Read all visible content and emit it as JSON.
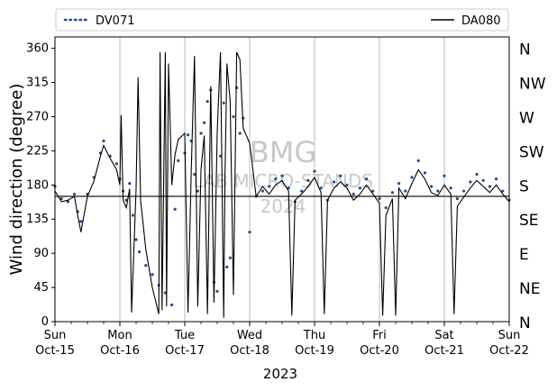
{
  "chart_data": {
    "type": "line",
    "xlabel": "2023",
    "ylabel": "Wind direction (degree)",
    "ylim": [
      0,
      375
    ],
    "xlim": [
      "2023-10-15",
      "2023-10-22"
    ],
    "grid": "vertical lines at day ticks",
    "legend_position": "top (outside, above plot)",
    "y_ticks": [
      0,
      45,
      90,
      135,
      180,
      225,
      270,
      315,
      360
    ],
    "x_ticks": [
      {
        "date": "2023-10-15",
        "day": "Sun",
        "label": "Oct-15"
      },
      {
        "date": "2023-10-16",
        "day": "Mon",
        "label": "Oct-16"
      },
      {
        "date": "2023-10-17",
        "day": "Tue",
        "label": "Oct-17"
      },
      {
        "date": "2023-10-18",
        "day": "Wed",
        "label": "Oct-18"
      },
      {
        "date": "2023-10-19",
        "day": "Thu",
        "label": "Oct-19"
      },
      {
        "date": "2023-10-20",
        "day": "Fri",
        "label": "Oct-20"
      },
      {
        "date": "2023-10-21",
        "day": "Sat",
        "label": "Oct-21"
      },
      {
        "date": "2023-10-22",
        "day": "Sun",
        "label": "Oct-22"
      }
    ],
    "compass_labels": [
      {
        "deg": 0,
        "label": "N"
      },
      {
        "deg": 45,
        "label": "NE"
      },
      {
        "deg": 90,
        "label": "E"
      },
      {
        "deg": 135,
        "label": "SE"
      },
      {
        "deg": 180,
        "label": "S"
      },
      {
        "deg": 225,
        "label": "SW"
      },
      {
        "deg": 270,
        "label": "W"
      },
      {
        "deg": 315,
        "label": "NW"
      },
      {
        "deg": 360,
        "label": "N"
      }
    ],
    "reference_line": {
      "y": 165
    },
    "watermark": [
      "BMG",
      "LAB MICRO-STANDS",
      "2024"
    ],
    "series": [
      {
        "name": "DV071",
        "style": "dotted",
        "color": "#1f4e8c",
        "points": [
          [
            0.0,
            178
          ],
          [
            0.1,
            162
          ],
          [
            0.2,
            158
          ],
          [
            0.3,
            168
          ],
          [
            0.35,
            145
          ],
          [
            0.4,
            132
          ],
          [
            0.5,
            168
          ],
          [
            0.6,
            190
          ],
          [
            0.7,
            222
          ],
          [
            0.75,
            238
          ],
          [
            0.85,
            218
          ],
          [
            0.95,
            208
          ],
          [
            1.0,
            188
          ],
          [
            1.05,
            172
          ],
          [
            1.1,
            160
          ],
          [
            1.15,
            182
          ],
          [
            1.2,
            140
          ],
          [
            1.25,
            108
          ],
          [
            1.3,
            92
          ],
          [
            1.4,
            74
          ],
          [
            1.5,
            62
          ],
          [
            1.6,
            48
          ],
          [
            1.7,
            38
          ],
          [
            1.8,
            22
          ],
          [
            1.85,
            148
          ],
          [
            1.9,
            212
          ],
          [
            2.0,
            222
          ],
          [
            2.05,
            246
          ],
          [
            2.1,
            238
          ],
          [
            2.15,
            194
          ],
          [
            2.2,
            172
          ],
          [
            2.25,
            248
          ],
          [
            2.3,
            262
          ],
          [
            2.35,
            290
          ],
          [
            2.4,
            305
          ],
          [
            2.45,
            52
          ],
          [
            2.5,
            40
          ],
          [
            2.55,
            218
          ],
          [
            2.6,
            288
          ],
          [
            2.65,
            72
          ],
          [
            2.7,
            84
          ],
          [
            2.75,
            270
          ],
          [
            2.8,
            308
          ],
          [
            2.85,
            248
          ],
          [
            2.9,
            268
          ],
          [
            3.0,
            118
          ],
          [
            3.1,
            165
          ],
          [
            3.2,
            172
          ],
          [
            3.3,
            178
          ],
          [
            3.4,
            188
          ],
          [
            3.5,
            192
          ],
          [
            3.6,
            176
          ],
          [
            3.7,
            158
          ],
          [
            3.8,
            172
          ],
          [
            3.9,
            186
          ],
          [
            4.0,
            198
          ],
          [
            4.1,
            176
          ],
          [
            4.2,
            160
          ],
          [
            4.3,
            184
          ],
          [
            4.4,
            192
          ],
          [
            4.5,
            180
          ],
          [
            4.6,
            168
          ],
          [
            4.7,
            176
          ],
          [
            4.8,
            188
          ],
          [
            4.9,
            172
          ],
          [
            5.0,
            162
          ],
          [
            5.1,
            150
          ],
          [
            5.2,
            170
          ],
          [
            5.3,
            182
          ],
          [
            5.4,
            172
          ],
          [
            5.5,
            190
          ],
          [
            5.6,
            212
          ],
          [
            5.7,
            196
          ],
          [
            5.8,
            178
          ],
          [
            5.9,
            172
          ],
          [
            6.0,
            192
          ],
          [
            6.1,
            176
          ],
          [
            6.2,
            162
          ],
          [
            6.3,
            172
          ],
          [
            6.4,
            184
          ],
          [
            6.5,
            194
          ],
          [
            6.6,
            186
          ],
          [
            6.7,
            178
          ],
          [
            6.8,
            188
          ],
          [
            6.9,
            172
          ],
          [
            7.0,
            160
          ]
        ]
      },
      {
        "name": "DA080",
        "style": "solid",
        "color": "#000000",
        "points": [
          [
            0.0,
            172
          ],
          [
            0.1,
            158
          ],
          [
            0.2,
            160
          ],
          [
            0.3,
            165
          ],
          [
            0.35,
            140
          ],
          [
            0.4,
            118
          ],
          [
            0.5,
            165
          ],
          [
            0.6,
            185
          ],
          [
            0.7,
            218
          ],
          [
            0.75,
            232
          ],
          [
            0.85,
            215
          ],
          [
            0.95,
            200
          ],
          [
            1.0,
            180
          ],
          [
            1.02,
            272
          ],
          [
            1.05,
            160
          ],
          [
            1.1,
            150
          ],
          [
            1.15,
            175
          ],
          [
            1.18,
            12
          ],
          [
            1.25,
            175
          ],
          [
            1.28,
            322
          ],
          [
            1.32,
            160
          ],
          [
            1.4,
            95
          ],
          [
            1.5,
            45
          ],
          [
            1.6,
            10
          ],
          [
            1.62,
            355
          ],
          [
            1.65,
            15
          ],
          [
            1.7,
            355
          ],
          [
            1.72,
            20
          ],
          [
            1.75,
            340
          ],
          [
            1.8,
            180
          ],
          [
            1.85,
            220
          ],
          [
            1.9,
            240
          ],
          [
            2.0,
            248
          ],
          [
            2.05,
            12
          ],
          [
            2.1,
            200
          ],
          [
            2.15,
            350
          ],
          [
            2.2,
            20
          ],
          [
            2.25,
            200
          ],
          [
            2.3,
            245
          ],
          [
            2.35,
            10
          ],
          [
            2.4,
            310
          ],
          [
            2.45,
            25
          ],
          [
            2.5,
            250
          ],
          [
            2.55,
            355
          ],
          [
            2.6,
            5
          ],
          [
            2.62,
            190
          ],
          [
            2.65,
            340
          ],
          [
            2.7,
            290
          ],
          [
            2.75,
            35
          ],
          [
            2.8,
            355
          ],
          [
            2.85,
            345
          ],
          [
            2.9,
            255
          ],
          [
            3.0,
            235
          ],
          [
            3.1,
            165
          ],
          [
            3.2,
            178
          ],
          [
            3.3,
            168
          ],
          [
            3.4,
            180
          ],
          [
            3.5,
            186
          ],
          [
            3.6,
            172
          ],
          [
            3.65,
            8
          ],
          [
            3.7,
            160
          ],
          [
            3.8,
            168
          ],
          [
            3.9,
            178
          ],
          [
            4.0,
            190
          ],
          [
            4.1,
            170
          ],
          [
            4.15,
            10
          ],
          [
            4.2,
            160
          ],
          [
            4.3,
            176
          ],
          [
            4.4,
            184
          ],
          [
            4.5,
            176
          ],
          [
            4.6,
            160
          ],
          [
            4.7,
            168
          ],
          [
            4.8,
            180
          ],
          [
            4.9,
            168
          ],
          [
            5.0,
            156
          ],
          [
            5.05,
            8
          ],
          [
            5.1,
            140
          ],
          [
            5.2,
            162
          ],
          [
            5.25,
            8
          ],
          [
            5.3,
            176
          ],
          [
            5.4,
            162
          ],
          [
            5.5,
            182
          ],
          [
            5.6,
            200
          ],
          [
            5.7,
            188
          ],
          [
            5.8,
            170
          ],
          [
            5.9,
            166
          ],
          [
            6.0,
            180
          ],
          [
            6.1,
            168
          ],
          [
            6.15,
            10
          ],
          [
            6.2,
            152
          ],
          [
            6.3,
            164
          ],
          [
            6.4,
            176
          ],
          [
            6.5,
            186
          ],
          [
            6.6,
            178
          ],
          [
            6.7,
            170
          ],
          [
            6.8,
            180
          ],
          [
            6.9,
            168
          ],
          [
            7.0,
            158
          ]
        ]
      }
    ]
  }
}
